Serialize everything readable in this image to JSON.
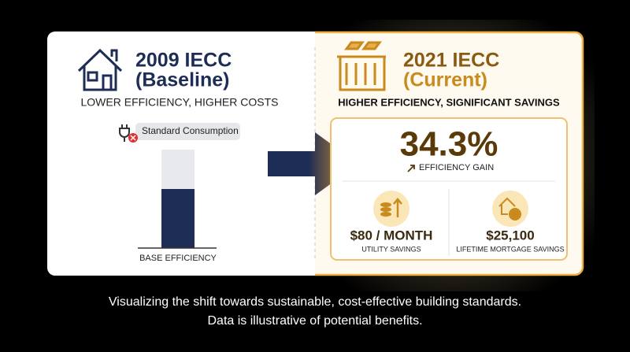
{
  "left": {
    "title_line1": "2009 IECC",
    "title_line2": "(Baseline)",
    "subtitle": "LOWER EFFICIENCY, HIGHER COSTS",
    "badge": "Standard Consumption",
    "bar_label": "BASE EFFICIENCY"
  },
  "right": {
    "title_line1": "2021 IECC",
    "title_line2": "(Current)",
    "subtitle": "HIGHER EFFICIENCY, SIGNIFICANT SAVINGS",
    "metric": {
      "value": "34.3%",
      "label": "EFFICIENCY GAIN"
    },
    "stats": [
      {
        "value": "$80 / MONTH",
        "label": "UTILITY SAVINGS"
      },
      {
        "value": "$25,100",
        "label": "LIFETIME MORTGAGE SAVINGS"
      }
    ]
  },
  "caption": [
    "Visualizing the shift towards sustainable, cost-effective building standards.",
    "Data is illustrative of potential benefits."
  ]
}
